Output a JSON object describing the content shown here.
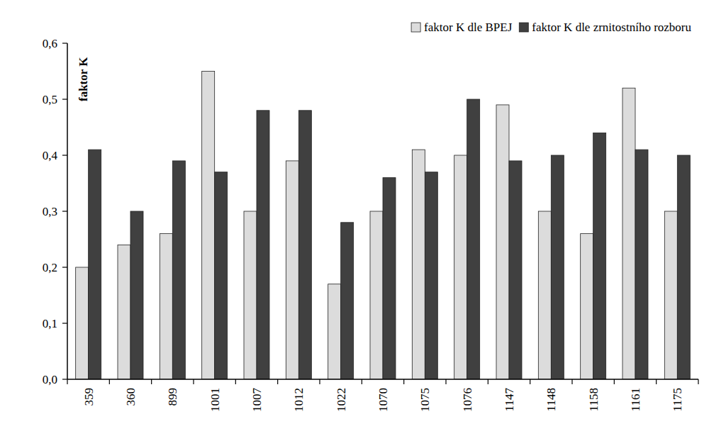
{
  "chart_data": {
    "type": "bar",
    "y_label": "faktor K",
    "categories": [
      "359",
      "360",
      "899",
      "1001",
      "1007",
      "1012",
      "1022",
      "1070",
      "1075",
      "1076",
      "1147",
      "1148",
      "1158",
      "1161",
      "1175"
    ],
    "series": [
      {
        "name": "faktor K dle BPEJ",
        "color": "#dcdcdc",
        "values": [
          0.2,
          0.24,
          0.26,
          0.55,
          0.3,
          0.39,
          0.17,
          0.3,
          0.41,
          0.4,
          0.49,
          0.3,
          0.26,
          0.52,
          0.3
        ]
      },
      {
        "name": "faktor K dle zrnitostního rozboru",
        "color": "#404040",
        "values": [
          0.41,
          0.3,
          0.39,
          0.37,
          0.48,
          0.48,
          0.28,
          0.36,
          0.37,
          0.5,
          0.39,
          0.4,
          0.44,
          0.41,
          0.4
        ]
      }
    ],
    "ylim": [
      0,
      0.6
    ],
    "yticks": [
      {
        "value": 0,
        "label": "0,0"
      },
      {
        "value": 0.1,
        "label": "0,1"
      },
      {
        "value": 0.2,
        "label": "0,2"
      },
      {
        "value": 0.3,
        "label": "0,3"
      },
      {
        "value": 0.4,
        "label": "0,4"
      },
      {
        "value": 0.5,
        "label": "0,5"
      },
      {
        "value": 0.6,
        "label": "0,6"
      }
    ],
    "grid": false,
    "legend": "top-right"
  }
}
